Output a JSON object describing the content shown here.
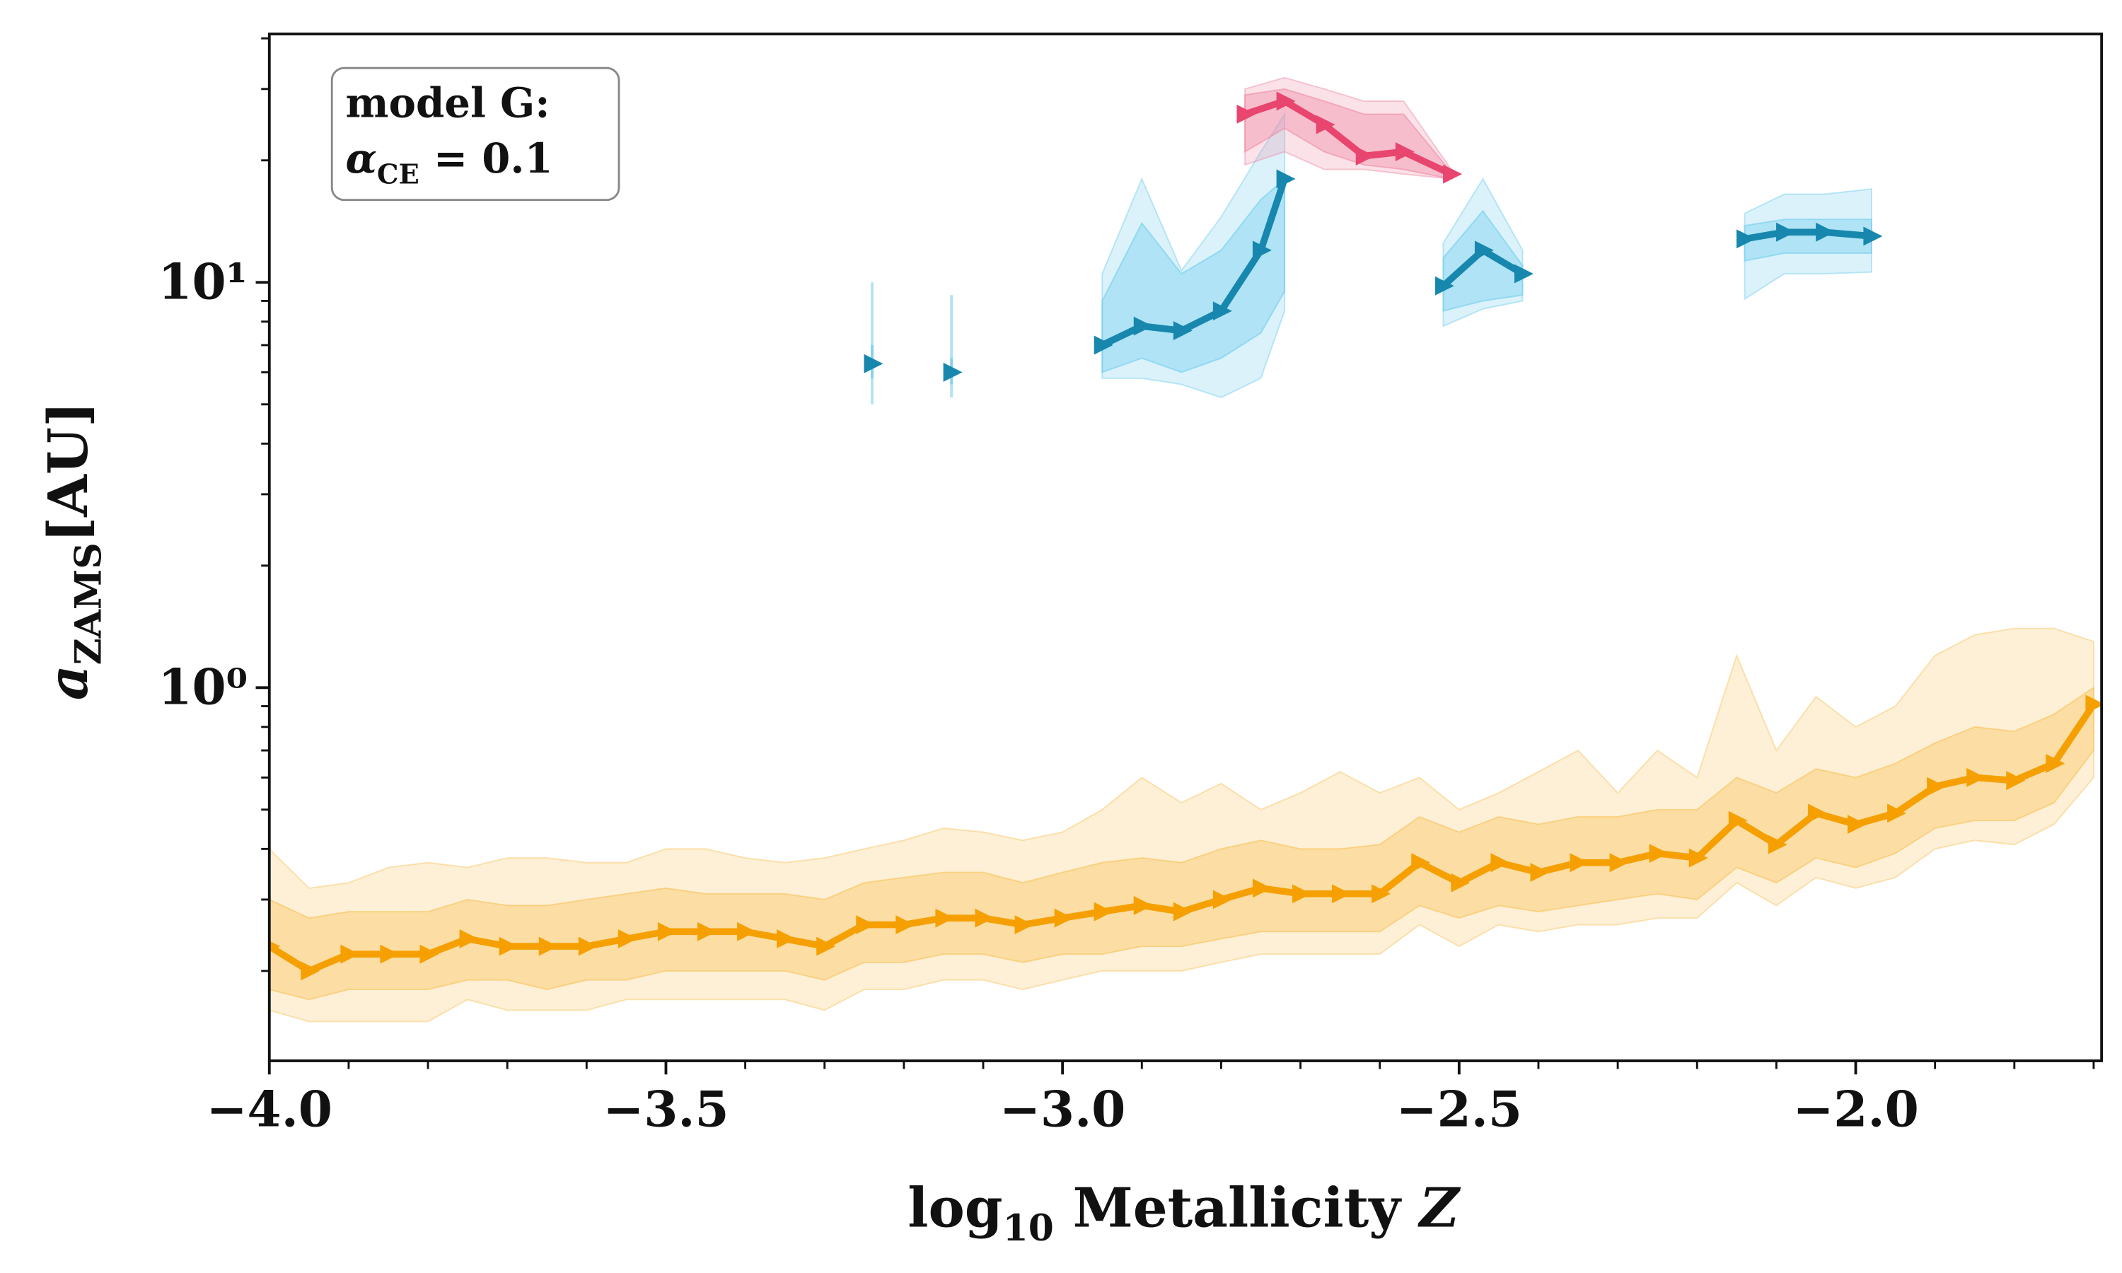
{
  "chart_data": {
    "type": "line",
    "xlabel": {
      "main": "log",
      "sub": "10",
      "rest": " Metallicity ",
      "var": "Z"
    },
    "ylabel": {
      "main": "a",
      "sub": "ZAMS",
      "rest": "[AU]"
    },
    "annotation": {
      "line1": "model G:",
      "symbol": "α",
      "sub": "CE",
      "rest": " = 0.1"
    },
    "log_y": true,
    "xlim": [
      -4.0,
      -1.69
    ],
    "ylim": [
      0.12,
      41
    ],
    "xticks": [
      {
        "value": -4.0,
        "label": "−4.0"
      },
      {
        "value": -3.5,
        "label": "−3.5"
      },
      {
        "value": -3.0,
        "label": "−3.0"
      },
      {
        "value": -2.5,
        "label": "−2.5"
      },
      {
        "value": -2.0,
        "label": "−2.0"
      }
    ],
    "xminorticks": [
      -3.9,
      -3.8,
      -3.7,
      -3.6,
      -3.4,
      -3.3,
      -3.2,
      -3.1,
      -2.9,
      -2.8,
      -2.7,
      -2.6,
      -2.4,
      -2.3,
      -2.2,
      -2.1,
      -1.9,
      -1.8,
      -1.7
    ],
    "yticks": [
      {
        "value": 1,
        "label": "10⁰"
      },
      {
        "value": 10,
        "label": "10¹"
      }
    ],
    "yminorticks": [
      0.2,
      0.3,
      0.4,
      0.5,
      0.6,
      0.7,
      0.8,
      0.9,
      2,
      3,
      4,
      5,
      6,
      7,
      8,
      9,
      20,
      30,
      40
    ],
    "series": [
      {
        "color": "#f5a000",
        "band_color": "#f9c25a",
        "x": [
          -4.0,
          -3.95,
          -3.9,
          -3.85,
          -3.8,
          -3.75,
          -3.7,
          -3.65,
          -3.6,
          -3.55,
          -3.5,
          -3.45,
          -3.4,
          -3.35,
          -3.3,
          -3.25,
          -3.2,
          -3.15,
          -3.1,
          -3.05,
          -3.0,
          -2.95,
          -2.9,
          -2.85,
          -2.8,
          -2.75,
          -2.7,
          -2.65,
          -2.6,
          -2.55,
          -2.5,
          -2.45,
          -2.4,
          -2.35,
          -2.3,
          -2.25,
          -2.2,
          -2.15,
          -2.1,
          -2.05,
          -2.0,
          -1.95,
          -1.9,
          -1.85,
          -1.8,
          -1.75,
          -1.7
        ],
        "values": [
          0.23,
          0.2,
          0.22,
          0.22,
          0.22,
          0.24,
          0.23,
          0.23,
          0.23,
          0.24,
          0.25,
          0.25,
          0.25,
          0.24,
          0.23,
          0.26,
          0.26,
          0.27,
          0.27,
          0.26,
          0.27,
          0.28,
          0.29,
          0.28,
          0.3,
          0.32,
          0.31,
          0.31,
          0.31,
          0.37,
          0.33,
          0.37,
          0.35,
          0.37,
          0.37,
          0.39,
          0.38,
          0.47,
          0.41,
          0.49,
          0.46,
          0.49,
          0.57,
          0.6,
          0.59,
          0.65,
          0.91
        ],
        "inner": {
          "lower": [
            0.18,
            0.17,
            0.18,
            0.18,
            0.18,
            0.19,
            0.19,
            0.18,
            0.19,
            0.19,
            0.2,
            0.2,
            0.2,
            0.2,
            0.19,
            0.21,
            0.21,
            0.22,
            0.22,
            0.21,
            0.22,
            0.22,
            0.23,
            0.23,
            0.24,
            0.25,
            0.25,
            0.25,
            0.25,
            0.29,
            0.27,
            0.29,
            0.28,
            0.29,
            0.3,
            0.31,
            0.3,
            0.36,
            0.33,
            0.38,
            0.36,
            0.39,
            0.45,
            0.47,
            0.47,
            0.52,
            0.7
          ],
          "upper": [
            0.3,
            0.27,
            0.28,
            0.28,
            0.28,
            0.3,
            0.29,
            0.29,
            0.3,
            0.31,
            0.32,
            0.31,
            0.31,
            0.31,
            0.3,
            0.33,
            0.34,
            0.35,
            0.35,
            0.33,
            0.35,
            0.37,
            0.38,
            0.37,
            0.4,
            0.42,
            0.4,
            0.4,
            0.41,
            0.48,
            0.44,
            0.48,
            0.46,
            0.48,
            0.48,
            0.5,
            0.5,
            0.6,
            0.55,
            0.63,
            0.6,
            0.65,
            0.73,
            0.8,
            0.78,
            0.86,
            1.0
          ]
        },
        "outer": {
          "lower": [
            0.16,
            0.15,
            0.15,
            0.15,
            0.15,
            0.17,
            0.16,
            0.16,
            0.16,
            0.17,
            0.17,
            0.17,
            0.17,
            0.17,
            0.16,
            0.18,
            0.18,
            0.19,
            0.19,
            0.18,
            0.19,
            0.2,
            0.2,
            0.2,
            0.21,
            0.22,
            0.22,
            0.22,
            0.22,
            0.26,
            0.23,
            0.26,
            0.25,
            0.26,
            0.26,
            0.27,
            0.27,
            0.33,
            0.29,
            0.34,
            0.32,
            0.34,
            0.4,
            0.42,
            0.41,
            0.46,
            0.6
          ],
          "upper": [
            0.4,
            0.32,
            0.33,
            0.36,
            0.37,
            0.36,
            0.38,
            0.38,
            0.37,
            0.37,
            0.4,
            0.4,
            0.38,
            0.37,
            0.38,
            0.4,
            0.42,
            0.45,
            0.44,
            0.42,
            0.44,
            0.5,
            0.6,
            0.52,
            0.58,
            0.5,
            0.55,
            0.62,
            0.55,
            0.6,
            0.5,
            0.55,
            0.62,
            0.7,
            0.55,
            0.7,
            0.6,
            1.2,
            0.7,
            0.95,
            0.8,
            0.9,
            1.2,
            1.35,
            1.4,
            1.4,
            1.3
          ]
        }
      },
      {
        "color": "#1787ad",
        "band_color": "#6fcdee",
        "x": [
          -3.24
        ],
        "values": [
          6.3
        ],
        "inner": {
          "lower": [
            5.8
          ],
          "upper": [
            7.0
          ]
        },
        "outer": {
          "lower": [
            5.0
          ],
          "upper": [
            10
          ]
        }
      },
      {
        "color": "#1787ad",
        "band_color": "#6fcdee",
        "x": [
          -3.14
        ],
        "values": [
          6.0
        ],
        "inner": {
          "lower": [
            5.6
          ],
          "upper": [
            6.5
          ]
        },
        "outer": {
          "lower": [
            5.2
          ],
          "upper": [
            9.3
          ]
        }
      },
      {
        "color": "#1787ad",
        "band_color": "#6fcdee",
        "x": [
          -2.95,
          -2.9,
          -2.85,
          -2.8,
          -2.75,
          -2.72
        ],
        "values": [
          7.0,
          7.8,
          7.6,
          8.5,
          12,
          18
        ],
        "inner": {
          "lower": [
            6.0,
            6.5,
            6.0,
            6.5,
            7.5,
            9.5
          ],
          "upper": [
            9,
            14,
            10.5,
            12,
            16,
            18
          ]
        },
        "outer": {
          "lower": [
            5.8,
            5.8,
            5.6,
            5.2,
            5.8,
            8.5
          ],
          "upper": [
            10.5,
            18,
            10.7,
            14.5,
            21,
            26
          ]
        }
      },
      {
        "color": "#1787ad",
        "band_color": "#6fcdee",
        "x": [
          -2.52,
          -2.47,
          -2.42
        ],
        "values": [
          9.8,
          12,
          10.5
        ],
        "inner": {
          "lower": [
            8.5,
            9,
            9.3
          ],
          "upper": [
            11.5,
            15,
            11
          ]
        },
        "outer": {
          "lower": [
            7.8,
            8.6,
            9
          ],
          "upper": [
            12.5,
            18,
            12
          ]
        }
      },
      {
        "color": "#1787ad",
        "band_color": "#6fcdee",
        "x": [
          -2.14,
          -2.09,
          -2.04,
          -1.98
        ],
        "values": [
          12.8,
          13.3,
          13.3,
          13.0
        ],
        "inner": {
          "lower": [
            11.3,
            11.8,
            11.8,
            11.8
          ],
          "upper": [
            13.8,
            14.3,
            14.3,
            14.3
          ]
        },
        "outer": {
          "lower": [
            9.1,
            10.5,
            10.5,
            10.6
          ],
          "upper": [
            14.8,
            16.5,
            16.5,
            17
          ]
        }
      },
      {
        "color": "#e8456f",
        "band_color": "#f08aa5",
        "x": [
          -2.77,
          -2.72,
          -2.67,
          -2.62,
          -2.57,
          -2.51
        ],
        "values": [
          26,
          28,
          24.5,
          20.5,
          21,
          18.5
        ],
        "inner": {
          "lower": [
            21,
            24,
            21,
            19.5,
            19,
            18
          ],
          "upper": [
            29,
            30,
            28,
            26,
            26,
            18.7
          ]
        },
        "outer": {
          "lower": [
            19.5,
            21,
            19,
            19,
            18.5,
            18
          ],
          "upper": [
            30,
            32,
            30,
            28,
            28,
            19
          ]
        }
      }
    ]
  }
}
